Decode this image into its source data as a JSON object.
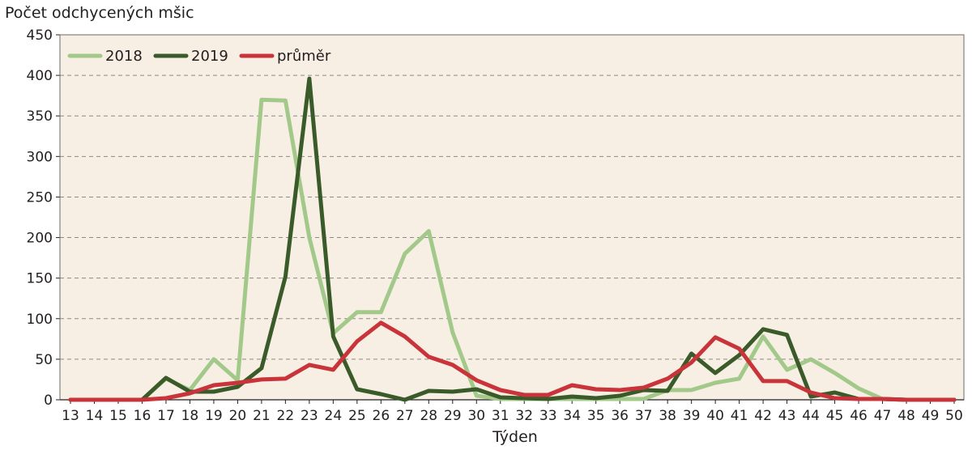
{
  "chart_data": {
    "type": "line",
    "ylabel": "Počet odchycených mšic",
    "xlabel": "Týden",
    "ylim": [
      0,
      450
    ],
    "yticks": [
      0,
      50,
      100,
      150,
      200,
      250,
      300,
      350,
      400,
      450
    ],
    "grid": "horizontal dashed",
    "legend_position": "top-left",
    "background_color": "#f7efe3",
    "categories": [
      "13",
      "14",
      "15",
      "16",
      "17",
      "18",
      "19",
      "20",
      "21",
      "22",
      "23",
      "24",
      "25",
      "26",
      "27",
      "28",
      "29",
      "30",
      "31",
      "32",
      "33",
      "34",
      "35",
      "36",
      "37",
      "38",
      "39",
      "40",
      "41",
      "42",
      "43",
      "44",
      "45",
      "46",
      "47",
      "48",
      "49",
      "50"
    ],
    "series": [
      {
        "name": "2018",
        "color": "#a2c98a",
        "values": [
          0,
          0,
          0,
          0,
          26,
          12,
          50,
          24,
          370,
          369,
          200,
          82,
          108,
          108,
          180,
          208,
          83,
          5,
          1,
          1,
          1,
          1,
          1,
          1,
          1,
          12,
          12,
          21,
          26,
          78,
          37,
          50,
          33,
          14,
          1,
          0,
          0,
          0
        ]
      },
      {
        "name": "2019",
        "color": "#3a5a2a",
        "values": [
          0,
          0,
          0,
          0,
          27,
          10,
          10,
          16,
          39,
          152,
          396,
          78,
          13,
          7,
          0,
          11,
          10,
          13,
          3,
          2,
          1,
          4,
          2,
          5,
          12,
          11,
          57,
          33,
          55,
          87,
          80,
          4,
          9,
          1,
          1,
          0,
          0,
          0
        ]
      },
      {
        "name": "průměr",
        "color": "#c9333a",
        "values": [
          0,
          0,
          0,
          0,
          2,
          8,
          18,
          21,
          25,
          26,
          43,
          37,
          72,
          95,
          78,
          53,
          43,
          24,
          12,
          6,
          6,
          18,
          13,
          12,
          15,
          26,
          46,
          77,
          63,
          23,
          23,
          9,
          2,
          1,
          1,
          0,
          0,
          0
        ]
      }
    ]
  }
}
